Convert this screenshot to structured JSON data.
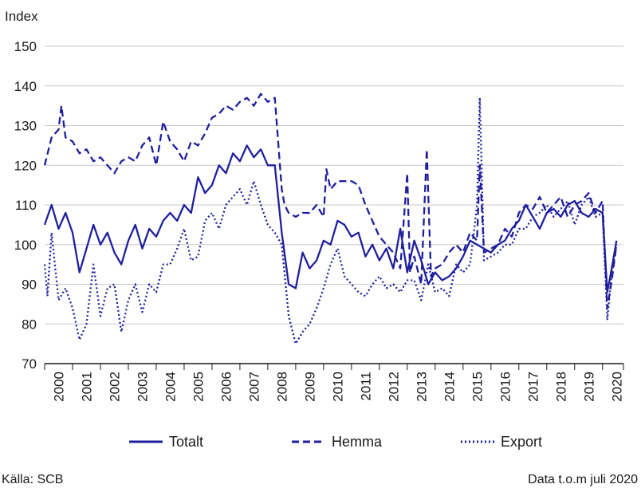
{
  "chart_data": {
    "type": "line",
    "ylabel": "Index",
    "ylim": [
      70,
      150
    ],
    "yticks": [
      70,
      80,
      90,
      100,
      110,
      120,
      130,
      140,
      150
    ],
    "xlim": [
      2000.0,
      2020.75
    ],
    "categories": [
      "2000",
      "2001",
      "2002",
      "2003",
      "2004",
      "2005",
      "2006",
      "2007",
      "2008",
      "2009",
      "2010",
      "2011",
      "2012",
      "2013",
      "2014",
      "2015",
      "2016",
      "2017",
      "2018",
      "2019",
      "2020"
    ],
    "grid": "horizontal",
    "legend": "bottom",
    "colors": {
      "line": "#1f1f9e",
      "grid": "#c8c8c8",
      "axis": "#1a1a1a"
    },
    "series": [
      {
        "name": "Totalt",
        "style": "solid",
        "x": [
          2000.0,
          2000.25,
          2000.5,
          2000.75,
          2001.0,
          2001.25,
          2001.5,
          2001.75,
          2002.0,
          2002.25,
          2002.5,
          2002.75,
          2003.0,
          2003.25,
          2003.5,
          2003.75,
          2004.0,
          2004.25,
          2004.5,
          2004.75,
          2005.0,
          2005.25,
          2005.5,
          2005.75,
          2006.0,
          2006.25,
          2006.5,
          2006.75,
          2007.0,
          2007.25,
          2007.5,
          2007.75,
          2008.0,
          2008.25,
          2008.5,
          2008.75,
          2009.0,
          2009.25,
          2009.5,
          2009.75,
          2010.0,
          2010.25,
          2010.5,
          2010.75,
          2011.0,
          2011.25,
          2011.5,
          2011.75,
          2012.0,
          2012.25,
          2012.5,
          2012.75,
          2013.0,
          2013.25,
          2013.5,
          2013.75,
          2014.0,
          2014.25,
          2014.5,
          2014.75,
          2015.0,
          2015.25,
          2015.5,
          2015.75,
          2016.0,
          2016.25,
          2016.5,
          2016.75,
          2017.0,
          2017.25,
          2017.5,
          2017.75,
          2018.0,
          2018.25,
          2018.5,
          2018.75,
          2019.0,
          2019.25,
          2019.5,
          2019.75,
          2020.0,
          2020.17,
          2020.33,
          2020.5
        ],
        "y": [
          105,
          110,
          104,
          108,
          103,
          93,
          99,
          105,
          100,
          103,
          98,
          95,
          101,
          105,
          99,
          104,
          102,
          106,
          108,
          106,
          110,
          108,
          117,
          113,
          115,
          120,
          118,
          123,
          121,
          125,
          122,
          124,
          120,
          120,
          103,
          90,
          89,
          98,
          94,
          96,
          101,
          100,
          106,
          105,
          102,
          103,
          97,
          100,
          96,
          99,
          94,
          104,
          93,
          101,
          96,
          90,
          93,
          91,
          92,
          94,
          97,
          101,
          100,
          99,
          98,
          100,
          101,
          104,
          106,
          110,
          107,
          104,
          108,
          109,
          107,
          110,
          111,
          108,
          107,
          109,
          108,
          88,
          94,
          101
        ]
      },
      {
        "name": "Hemma",
        "style": "dashed",
        "x": [
          2000.0,
          2000.25,
          2000.5,
          2000.6,
          2000.75,
          2001.0,
          2001.25,
          2001.5,
          2001.75,
          2002.0,
          2002.25,
          2002.5,
          2002.75,
          2003.0,
          2003.25,
          2003.5,
          2003.75,
          2004.0,
          2004.25,
          2004.5,
          2004.75,
          2005.0,
          2005.25,
          2005.5,
          2005.75,
          2006.0,
          2006.25,
          2006.5,
          2006.75,
          2007.0,
          2007.25,
          2007.5,
          2007.75,
          2008.0,
          2008.25,
          2008.5,
          2008.6,
          2008.75,
          2009.0,
          2009.25,
          2009.5,
          2009.75,
          2010.0,
          2010.1,
          2010.25,
          2010.5,
          2010.75,
          2011.0,
          2011.25,
          2011.5,
          2011.75,
          2012.0,
          2012.25,
          2012.5,
          2012.75,
          2013.0,
          2013.1,
          2013.25,
          2013.5,
          2013.7,
          2013.85,
          2014.0,
          2014.25,
          2014.5,
          2014.75,
          2015.0,
          2015.25,
          2015.5,
          2015.6,
          2015.75,
          2016.0,
          2016.25,
          2016.5,
          2016.75,
          2017.0,
          2017.25,
          2017.5,
          2017.75,
          2018.0,
          2018.25,
          2018.5,
          2018.75,
          2019.0,
          2019.25,
          2019.5,
          2019.75,
          2020.0,
          2020.17,
          2020.33,
          2020.5
        ],
        "y": [
          120,
          127,
          129,
          135,
          127,
          126,
          123,
          124,
          121,
          122,
          120,
          118,
          121,
          122,
          121,
          125,
          127,
          120,
          131,
          126,
          124,
          121,
          126,
          125,
          128,
          132,
          133,
          135,
          134,
          136,
          137,
          135,
          138,
          136,
          137,
          114,
          110,
          108,
          107,
          108,
          108,
          110,
          107,
          119,
          114,
          116,
          116,
          116,
          115,
          110,
          106,
          102,
          100,
          98,
          94,
          118,
          93,
          97,
          90,
          124,
          92,
          94,
          95,
          98,
          100,
          98,
          103,
          101,
          120,
          98,
          99,
          100,
          104,
          102,
          108,
          110,
          109,
          112,
          108,
          110,
          112,
          107,
          110,
          111,
          113,
          108,
          111,
          84,
          91,
          100
        ]
      },
      {
        "name": "Export",
        "style": "dotted",
        "x": [
          2000.0,
          2000.1,
          2000.25,
          2000.5,
          2000.75,
          2001.0,
          2001.25,
          2001.5,
          2001.75,
          2002.0,
          2002.25,
          2002.5,
          2002.75,
          2003.0,
          2003.25,
          2003.5,
          2003.75,
          2004.0,
          2004.25,
          2004.5,
          2004.75,
          2005.0,
          2005.25,
          2005.5,
          2005.75,
          2006.0,
          2006.25,
          2006.5,
          2006.75,
          2007.0,
          2007.25,
          2007.5,
          2007.75,
          2008.0,
          2008.25,
          2008.5,
          2008.75,
          2009.0,
          2009.25,
          2009.5,
          2009.75,
          2010.0,
          2010.25,
          2010.5,
          2010.75,
          2011.0,
          2011.25,
          2011.5,
          2011.75,
          2012.0,
          2012.25,
          2012.5,
          2012.75,
          2013.0,
          2013.25,
          2013.5,
          2013.75,
          2014.0,
          2014.25,
          2014.5,
          2014.75,
          2015.0,
          2015.25,
          2015.5,
          2015.6,
          2015.75,
          2016.0,
          2016.25,
          2016.5,
          2016.75,
          2017.0,
          2017.25,
          2017.5,
          2017.75,
          2018.0,
          2018.25,
          2018.5,
          2018.75,
          2019.0,
          2019.25,
          2019.5,
          2019.75,
          2020.0,
          2020.17,
          2020.33,
          2020.5
        ],
        "y": [
          95,
          87,
          103,
          86,
          89,
          84,
          76,
          80,
          95,
          82,
          89,
          90,
          78,
          86,
          90,
          83,
          90,
          88,
          95,
          95,
          99,
          104,
          96,
          97,
          106,
          108,
          104,
          110,
          112,
          114,
          110,
          116,
          110,
          105,
          103,
          100,
          82,
          75,
          78,
          80,
          84,
          89,
          95,
          99,
          92,
          90,
          88,
          87,
          90,
          92,
          89,
          90,
          88,
          91,
          91,
          86,
          95,
          88,
          89,
          87,
          95,
          93,
          95,
          110,
          137,
          96,
          97,
          98,
          100,
          100,
          104,
          104,
          107,
          108,
          110,
          107,
          109,
          111,
          105,
          110,
          112,
          107,
          108,
          81,
          93,
          100
        ]
      }
    ],
    "source_left": "Källa: SCB",
    "source_right": "Data t.o.m juli 2020"
  }
}
